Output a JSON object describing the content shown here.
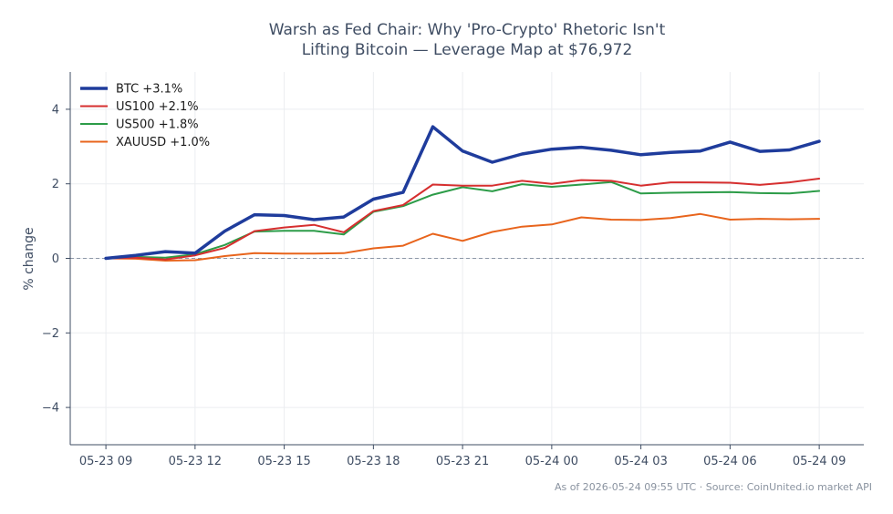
{
  "chart_data": {
    "type": "line",
    "title_line1": "Warsh as Fed Chair: Why 'Pro-Crypto' Rhetoric Isn't",
    "title_line2": "Lifting Bitcoin — Leverage Map at $76,972",
    "ylabel": "% change",
    "xlabel": "",
    "ylim": [
      -5,
      5
    ],
    "y_ticks": [
      -4,
      -2,
      0,
      2,
      4
    ],
    "y_tick_labels": [
      "−4",
      "−2",
      "0",
      "2",
      "4"
    ],
    "x_ticks": [
      0,
      3,
      6,
      9,
      12,
      15,
      18,
      21,
      24
    ],
    "x_tick_labels": [
      "05-23 09",
      "05-23 12",
      "05-23 15",
      "05-23 18",
      "05-23 21",
      "05-24 00",
      "05-24 03",
      "05-24 06",
      "05-24 09"
    ],
    "x": [
      0,
      1,
      2,
      3,
      4,
      5,
      6,
      7,
      8,
      9,
      10,
      11,
      12,
      13,
      14,
      15,
      16,
      17,
      18,
      19,
      20,
      21,
      22,
      23,
      24
    ],
    "grid": true,
    "zero_line": true,
    "legend_position": "top-left",
    "series": [
      {
        "name": "BTC +3.1%",
        "color": "#1f3c9c",
        "values": [
          0.0,
          0.08,
          0.18,
          0.14,
          0.73,
          1.17,
          1.15,
          1.04,
          1.11,
          1.59,
          1.77,
          3.53,
          2.88,
          2.58,
          2.8,
          2.93,
          2.98,
          2.9,
          2.78,
          2.84,
          2.88,
          3.12,
          2.87,
          2.91,
          3.14
        ]
      },
      {
        "name": "US100 +2.1%",
        "color": "#d62f2f",
        "values": [
          0.0,
          0.02,
          -0.03,
          0.08,
          0.28,
          0.73,
          0.83,
          0.9,
          0.7,
          1.27,
          1.43,
          1.98,
          1.95,
          1.95,
          2.08,
          2.0,
          2.1,
          2.08,
          1.95,
          2.04,
          2.04,
          2.03,
          1.97,
          2.04,
          2.14
        ]
      },
      {
        "name": "US500 +1.8%",
        "color": "#2c9c48",
        "values": [
          0.0,
          0.04,
          0.02,
          0.11,
          0.36,
          0.72,
          0.74,
          0.74,
          0.64,
          1.25,
          1.4,
          1.71,
          1.91,
          1.8,
          1.99,
          1.92,
          1.98,
          2.05,
          1.74,
          1.76,
          1.77,
          1.78,
          1.75,
          1.74,
          1.81
        ]
      },
      {
        "name": "XAUUSD +1.0%",
        "color": "#e8641c",
        "values": [
          0.0,
          -0.01,
          -0.06,
          -0.05,
          0.06,
          0.14,
          0.13,
          0.13,
          0.14,
          0.27,
          0.34,
          0.66,
          0.47,
          0.71,
          0.85,
          0.91,
          1.1,
          1.04,
          1.03,
          1.08,
          1.19,
          1.04,
          1.06,
          1.05,
          1.06
        ]
      }
    ]
  },
  "footer": "As of 2026-05-24 09:55 UTC · Source: CoinUnited.io market API"
}
